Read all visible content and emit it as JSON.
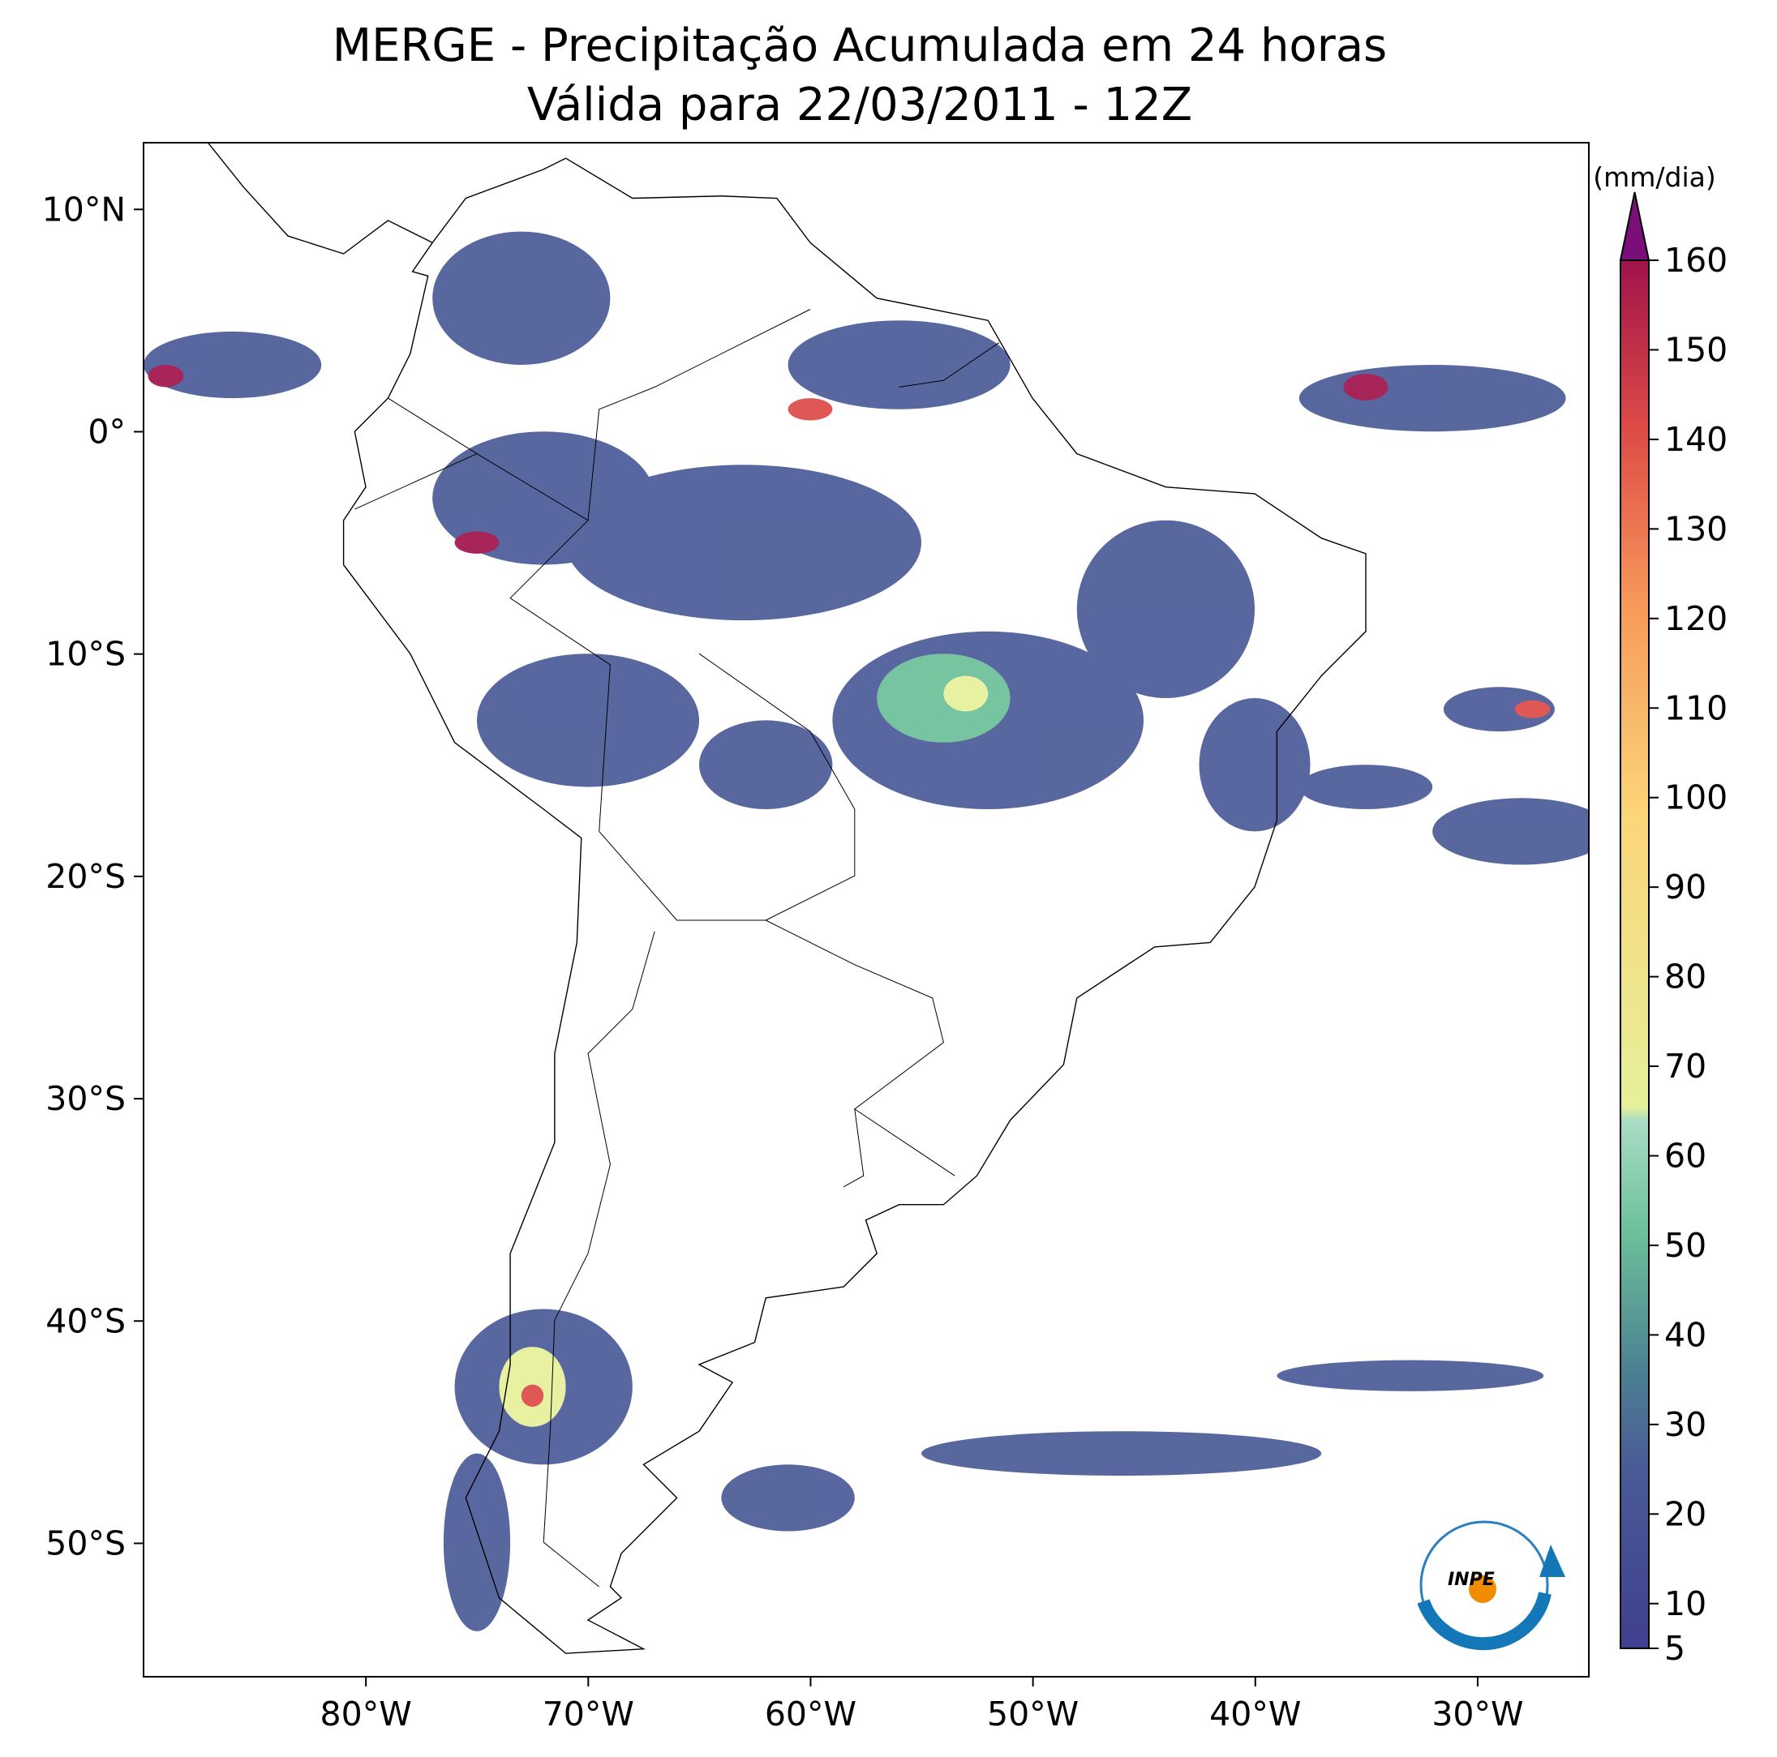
{
  "title": "MERGE - Precipitação Acumulada em 24 horas",
  "subtitle": "Válida para 22/03/2011 - 12Z",
  "map": {
    "lonlim": [
      -90,
      -25
    ],
    "latlim": [
      -56,
      13
    ],
    "lon_ticks": [
      {
        "value": -80,
        "label": "80°W"
      },
      {
        "value": -70,
        "label": "70°W"
      },
      {
        "value": -60,
        "label": "60°W"
      },
      {
        "value": -50,
        "label": "50°W"
      },
      {
        "value": -40,
        "label": "40°W"
      },
      {
        "value": -30,
        "label": "30°W"
      }
    ],
    "lat_ticks": [
      {
        "value": 10,
        "label": "10°N"
      },
      {
        "value": 0,
        "label": "0°"
      },
      {
        "value": -10,
        "label": "10°S"
      },
      {
        "value": -20,
        "label": "20°S"
      },
      {
        "value": -30,
        "label": "30°S"
      },
      {
        "value": -40,
        "label": "40°S"
      },
      {
        "value": -50,
        "label": "50°S"
      }
    ]
  },
  "colorbar": {
    "label": "(mm/dia)",
    "lim": [
      5,
      160
    ],
    "ticks": [
      5,
      10,
      20,
      30,
      40,
      50,
      60,
      70,
      80,
      90,
      100,
      110,
      120,
      130,
      140,
      150,
      160
    ]
  },
  "logo": "INPE"
}
